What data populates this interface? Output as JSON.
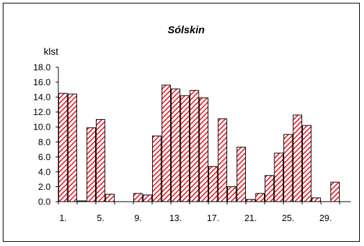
{
  "chart_data": {
    "type": "bar",
    "title": "Sólskin",
    "ylabel": "klst",
    "xlabel": "",
    "ylim": [
      0,
      18
    ],
    "yticks": [
      "0.0",
      "2.0",
      "4.0",
      "6.0",
      "8.0",
      "10.0",
      "12.0",
      "14.0",
      "16.0",
      "18.0"
    ],
    "xtick_labels": [
      {
        "day": 1,
        "label": "1."
      },
      {
        "day": 5,
        "label": "5."
      },
      {
        "day": 9,
        "label": "9."
      },
      {
        "day": 13,
        "label": "13."
      },
      {
        "day": 17,
        "label": "17."
      },
      {
        "day": 21,
        "label": "21."
      },
      {
        "day": 25,
        "label": "25."
      },
      {
        "day": 29,
        "label": "29."
      }
    ],
    "days": [
      1,
      2,
      3,
      4,
      5,
      6,
      7,
      8,
      9,
      10,
      11,
      12,
      13,
      14,
      15,
      16,
      17,
      18,
      19,
      20,
      21,
      22,
      23,
      24,
      25,
      26,
      27,
      28,
      29,
      30
    ],
    "values": [
      14.5,
      14.4,
      0.1,
      9.9,
      11.0,
      1.0,
      0.0,
      0.0,
      1.1,
      0.9,
      8.8,
      15.6,
      15.1,
      14.2,
      14.9,
      13.9,
      4.7,
      11.1,
      2.0,
      7.3,
      0.3,
      1.1,
      3.5,
      6.5,
      9.0,
      11.6,
      10.2,
      0.5,
      0.0,
      2.6
    ],
    "grid": false,
    "colors": {
      "bar_fill": "#ffffff",
      "bar_hatch": "#e8141e",
      "bar_stroke": "#000000"
    }
  }
}
